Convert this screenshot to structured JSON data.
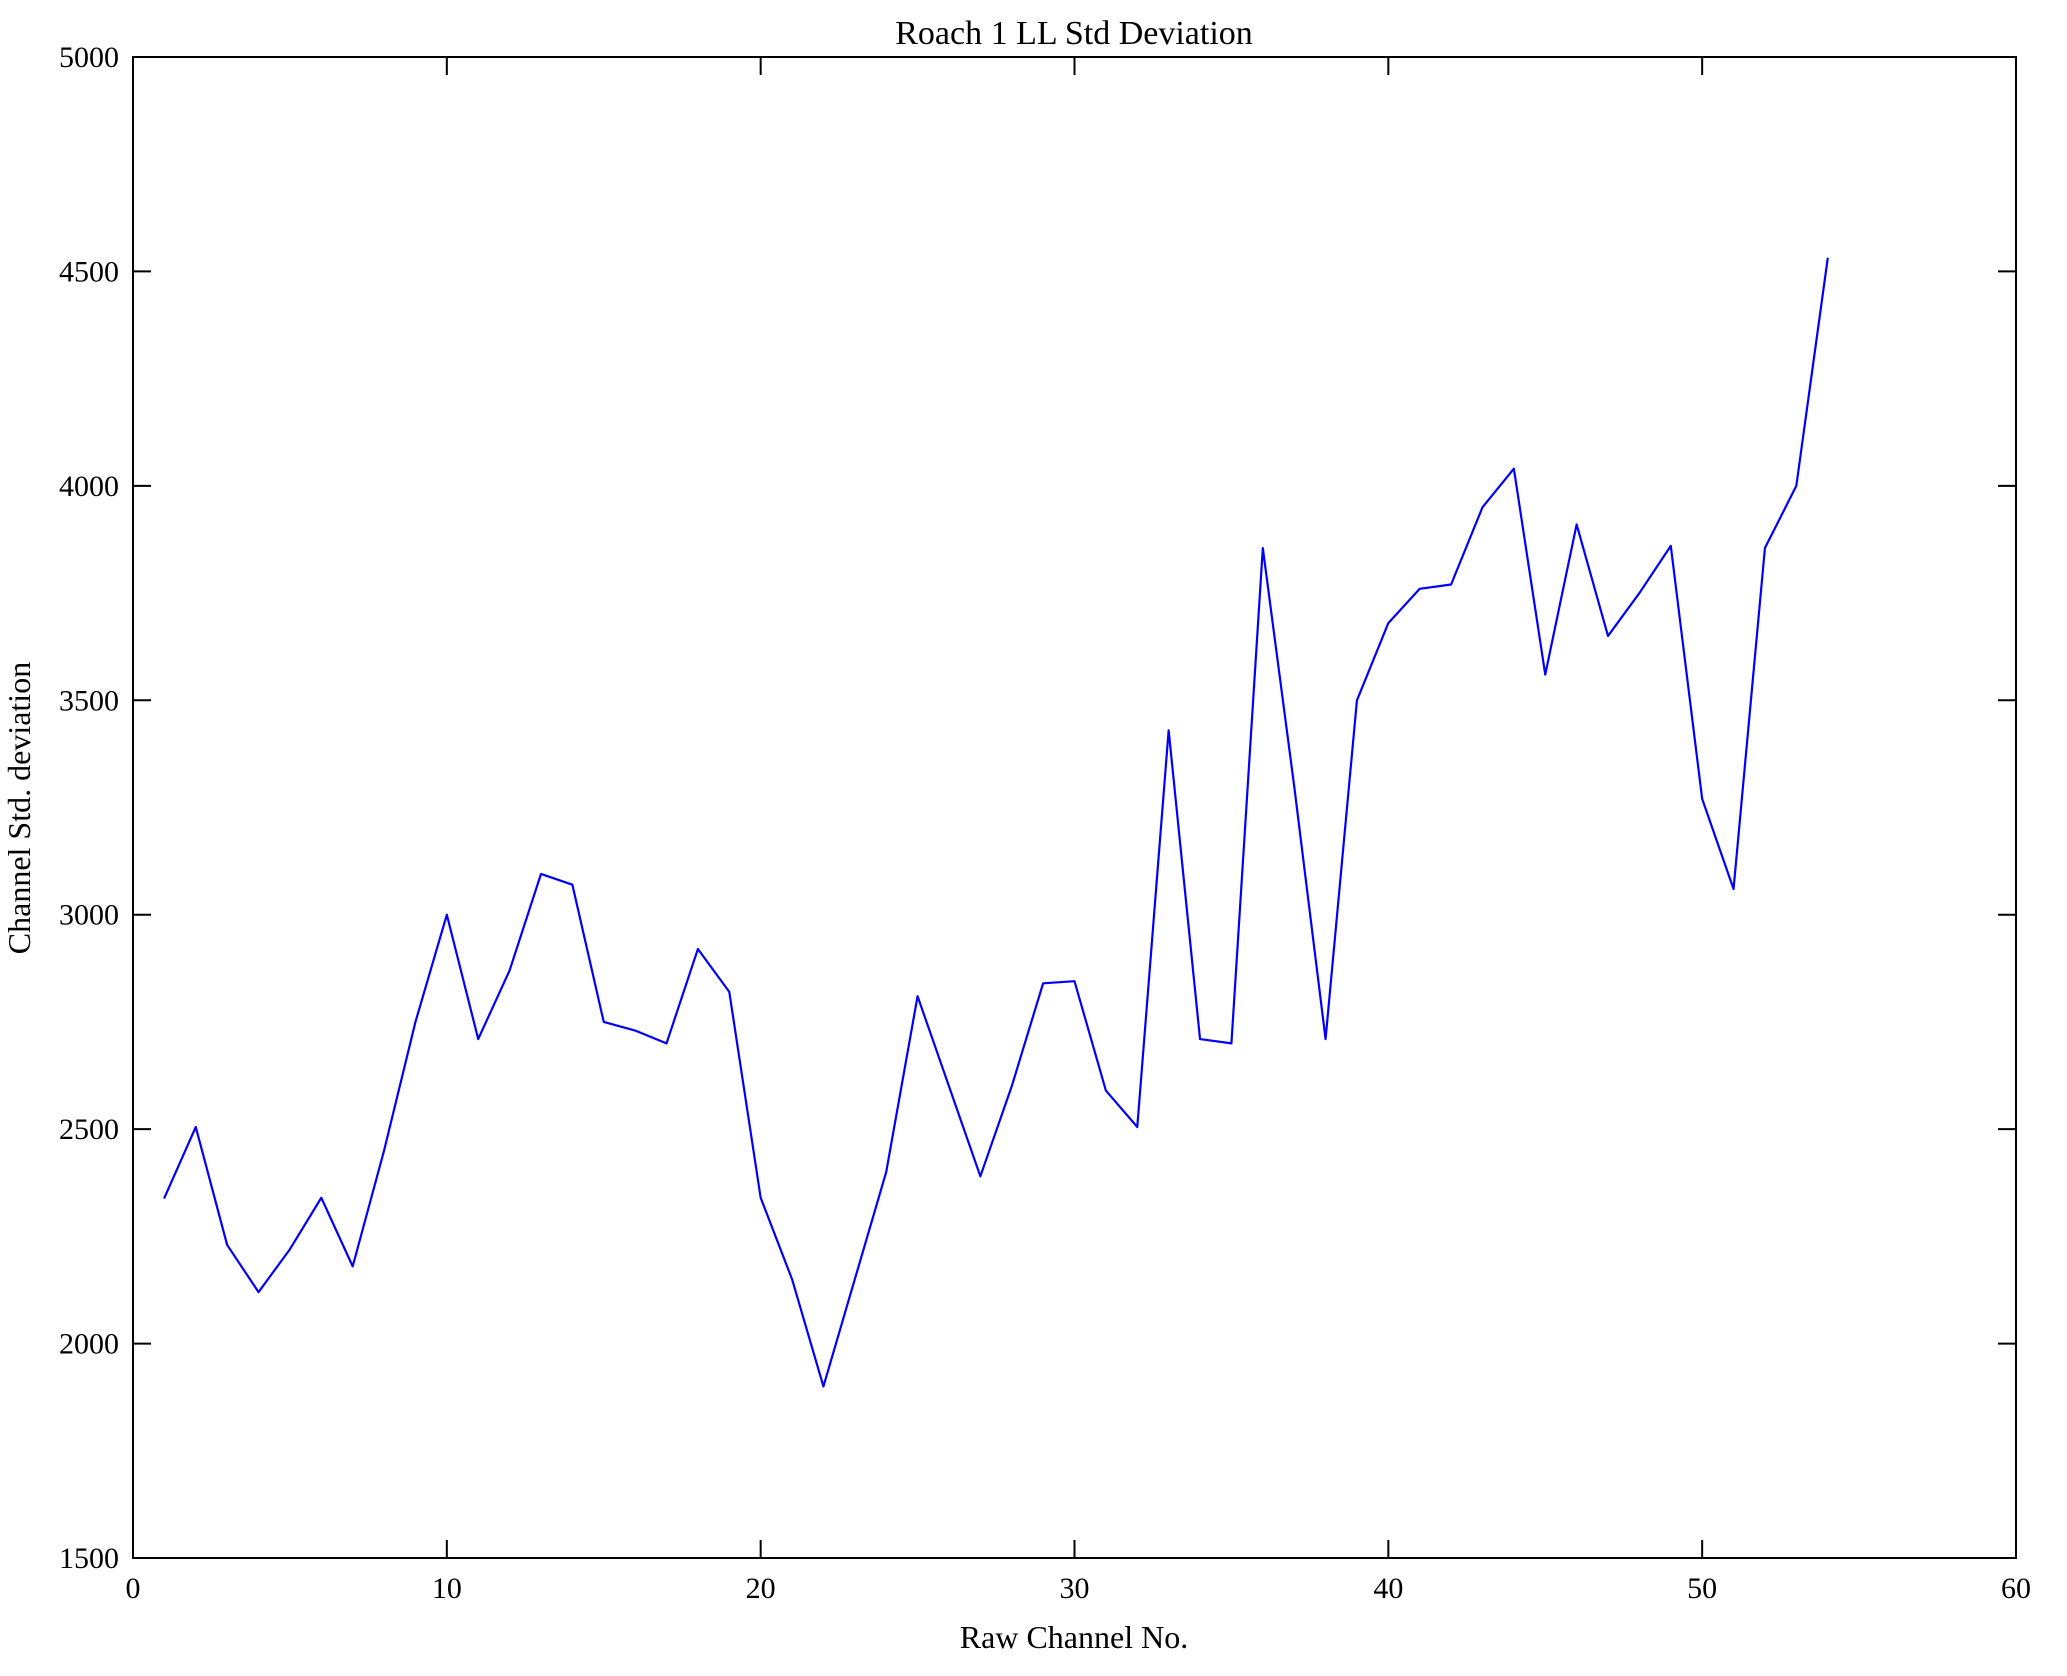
{
  "figure": {
    "title": "Roach 1 LL Std Deviation",
    "xlabel": "Raw Channel No.",
    "ylabel": "Channel Std. deviation"
  },
  "chart_data": {
    "type": "line",
    "title": "Roach 1 LL Std Deviation",
    "xlabel": "Raw Channel No.",
    "ylabel": "Channel Std. deviation",
    "xlim": [
      0,
      60
    ],
    "ylim": [
      1500,
      5000
    ],
    "xticks": [
      0,
      10,
      20,
      30,
      40,
      50,
      60
    ],
    "yticks": [
      1500,
      2000,
      2500,
      3000,
      3500,
      4000,
      4500,
      5000
    ],
    "grid": false,
    "legend": null,
    "line_color": "#0000ff",
    "x": [
      1,
      2,
      3,
      4,
      5,
      6,
      7,
      8,
      9,
      10,
      11,
      12,
      13,
      14,
      15,
      16,
      17,
      18,
      19,
      20,
      21,
      22,
      23,
      24,
      25,
      26,
      27,
      28,
      29,
      30,
      31,
      32,
      33,
      34,
      35,
      36,
      37,
      38,
      39,
      40,
      41,
      42,
      43,
      44,
      45,
      46,
      47,
      48,
      49,
      50,
      51,
      52,
      53,
      54
    ],
    "y": [
      2340,
      2505,
      2230,
      2120,
      2220,
      2340,
      2180,
      2450,
      2750,
      3000,
      2710,
      2870,
      3095,
      3070,
      2750,
      2730,
      2700,
      2920,
      2820,
      2340,
      2150,
      1900,
      2150,
      2400,
      2810,
      2600,
      2390,
      2600,
      2840,
      2845,
      2590,
      2505,
      3430,
      2710,
      2700,
      3855,
      3300,
      2710,
      3500,
      3680,
      3760,
      3770,
      3950,
      4040,
      3560,
      3910,
      3650,
      3750,
      3860,
      3270,
      3060,
      3855,
      4000,
      4530
    ]
  }
}
